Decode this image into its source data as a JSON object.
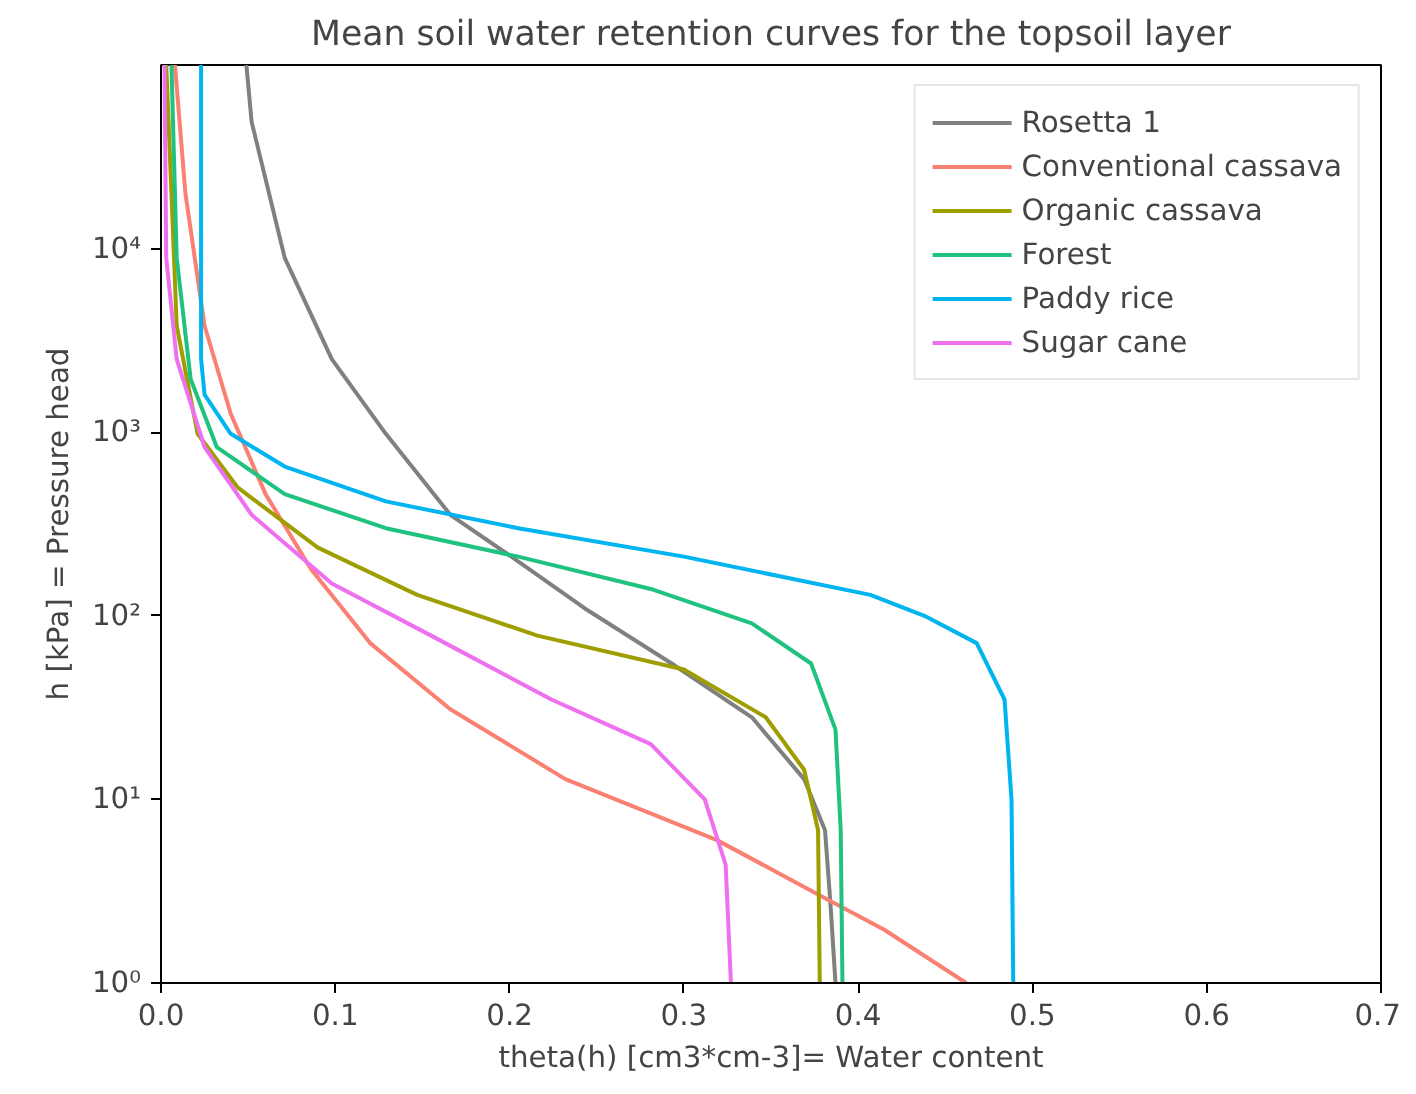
{
  "chart_data": {
    "type": "line",
    "title": "Mean soil water retention curves for the topsoil layer",
    "xlabel": "theta(h) [cm3*cm-3]= Water content",
    "ylabel": "h [kPa] = Pressure head",
    "log": "y",
    "grid": false,
    "legend": "top right",
    "xlim": [
      0,
      0.7
    ],
    "xticks": [
      {
        "value": 0,
        "label": "0.0"
      },
      {
        "value": 0.1,
        "label": "0.1"
      },
      {
        "value": 0.2,
        "label": "0.2"
      },
      {
        "value": 0.3,
        "label": "0.3"
      },
      {
        "value": 0.4,
        "label": "0.4"
      },
      {
        "value": 0.5,
        "label": "0.5"
      },
      {
        "value": 0.6,
        "label": "0.6"
      },
      {
        "value": 0.7,
        "label": "0.7"
      }
    ],
    "ylim": [
      1,
      100000
    ],
    "yticks": [
      {
        "value": 1,
        "label": "10⁰"
      },
      {
        "value": 10,
        "label": "10¹"
      },
      {
        "value": 100,
        "label": "10²"
      },
      {
        "value": 1000,
        "label": "10³"
      },
      {
        "value": 10000,
        "label": "10⁴"
      }
    ],
    "series": [
      {
        "name": "Rosetta 1",
        "color": "#808080",
        "x": [
          0.049,
          0.052,
          0.071,
          0.098,
          0.129,
          0.166,
          0.201,
          0.243,
          0.293,
          0.339,
          0.369,
          0.381,
          0.384,
          0.387
        ],
        "values": [
          100000,
          49000,
          8900,
          2500,
          980,
          355,
          210,
          110,
          55,
          28,
          12.9,
          6.8,
          2.8,
          1
        ]
      },
      {
        "name": "Conventional cassava",
        "color": "#fa8072",
        "x": [
          0.008,
          0.014,
          0.025,
          0.04,
          0.06,
          0.086,
          0.12,
          0.166,
          0.232,
          0.319,
          0.384,
          0.415,
          0.462
        ],
        "values": [
          100000,
          20000,
          3800,
          1260,
          460,
          180,
          71,
          31,
          12.9,
          6.0,
          2.8,
          1.95,
          1
        ]
      },
      {
        "name": "Organic cassava",
        "color": "#9e9e00",
        "x": [
          0.003,
          0.006,
          0.009,
          0.021,
          0.044,
          0.09,
          0.147,
          0.216,
          0.3,
          0.347,
          0.369,
          0.377,
          0.378
        ],
        "values": [
          100000,
          20000,
          3800,
          980,
          500,
          235,
          130,
          78,
          51,
          28,
          14.5,
          6.8,
          1
        ]
      },
      {
        "name": "Forest",
        "color": "#1fc27f",
        "x": [
          0.006,
          0.009,
          0.017,
          0.032,
          0.071,
          0.129,
          0.205,
          0.281,
          0.339,
          0.373,
          0.387,
          0.39,
          0.391
        ],
        "values": [
          100000,
          8900,
          1950,
          830,
          460,
          300,
          210,
          140,
          91,
          55,
          24,
          6.8,
          1
        ]
      },
      {
        "name": "Paddy rice",
        "color": "#00b4f0",
        "x": [
          0.023,
          0.023,
          0.025,
          0.04,
          0.071,
          0.129,
          0.205,
          0.3,
          0.407,
          0.438,
          0.468,
          0.484,
          0.488,
          0.489
        ],
        "values": [
          100000,
          2500,
          1600,
          980,
          650,
          420,
          300,
          210,
          130,
          100,
          71,
          35,
          10,
          1
        ]
      },
      {
        "name": "Sugar cane",
        "color": "#ee70ee",
        "x": [
          0.002,
          0.003,
          0.009,
          0.025,
          0.052,
          0.098,
          0.155,
          0.224,
          0.281,
          0.312,
          0.324,
          0.327
        ],
        "values": [
          100000,
          8900,
          2500,
          830,
          355,
          150,
          78,
          35,
          20,
          10,
          4.4,
          1
        ]
      }
    ]
  }
}
